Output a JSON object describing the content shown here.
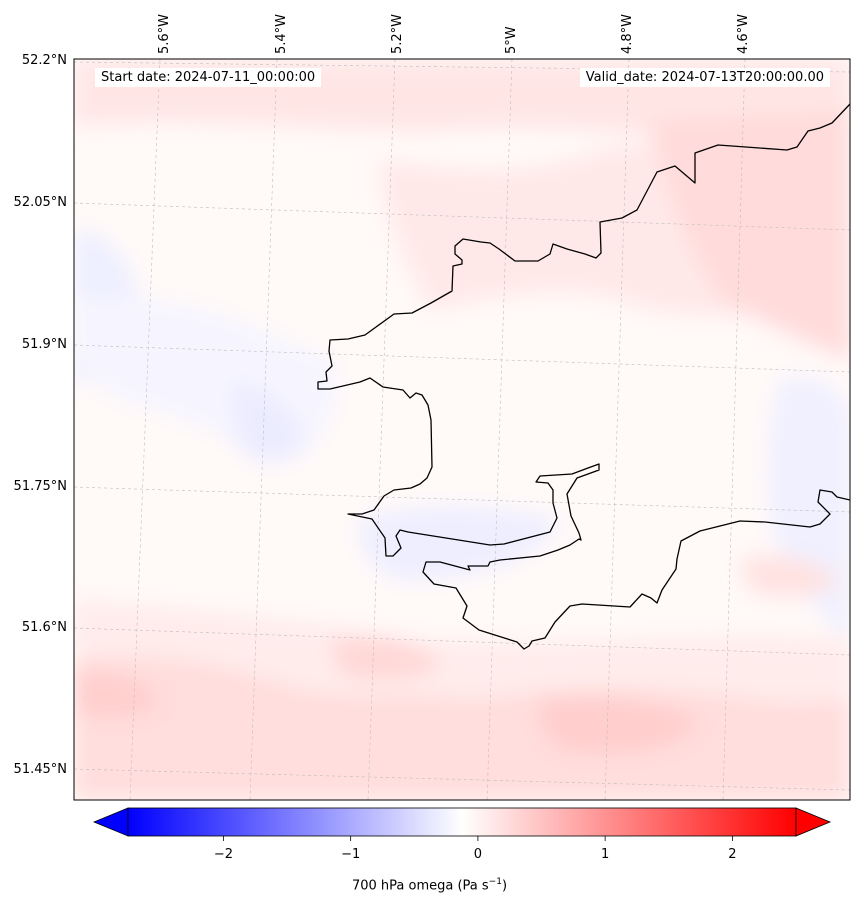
{
  "map": {
    "start_date_label": "Start date: 2024-07-11_00:00:00",
    "valid_date_label": "Valid_date: 2024-07-13T20:00:00.00",
    "longitude_labels": [
      "5.6°W",
      "5.4°W",
      "5.2°W",
      "5°W",
      "4.8°W",
      "4.6°W"
    ],
    "latitude_labels": [
      "52.2°N",
      "52.05°N",
      "51.9°N",
      "51.75°N",
      "51.6°N",
      "51.45°N"
    ],
    "field": "700 hPa omega",
    "coastline_color": "#000000"
  },
  "colorbar": {
    "title_prefix": "700 hPa omega (Pa s",
    "title_exponent": "−1",
    "title_suffix": ")",
    "tick_labels": [
      "−2",
      "−1",
      "0",
      "1",
      "2"
    ],
    "tick_values": [
      -2,
      -1,
      0,
      1,
      2
    ],
    "range": [
      -2.75,
      2.5
    ],
    "low_color": "#0000ff",
    "mid_color": "#ffffff",
    "high_color": "#ff0000"
  }
}
